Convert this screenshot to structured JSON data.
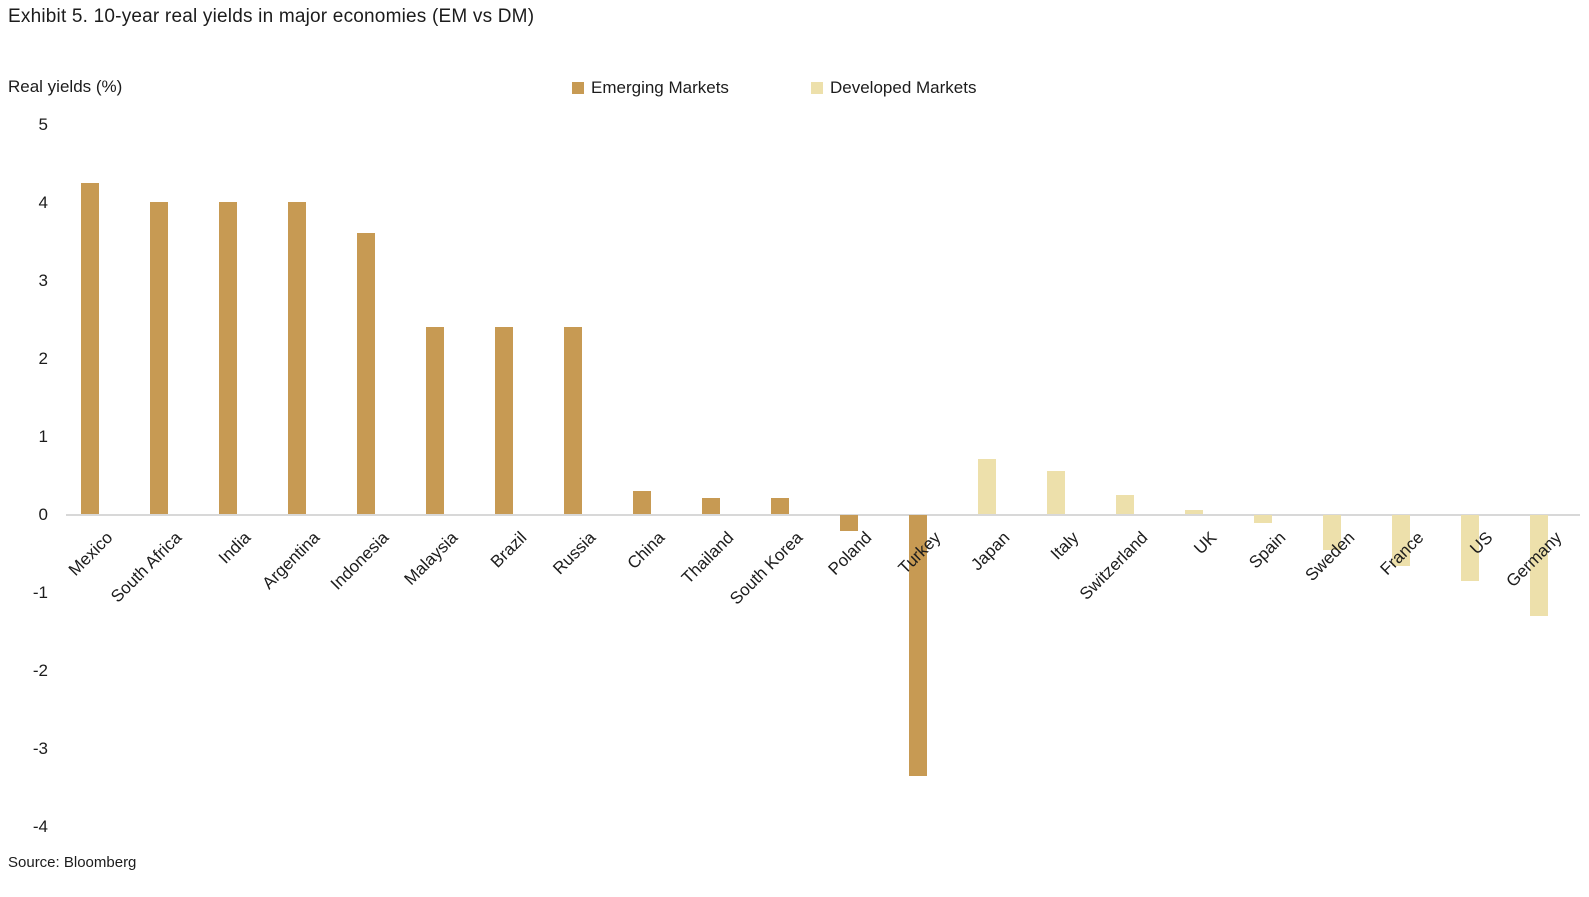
{
  "chart_data": {
    "type": "bar",
    "title": "Exhibit 5. 10-year real yields in major economies (EM vs DM)",
    "ylabel": "Real yields (%)",
    "source": "Source: Bloomberg",
    "ylim": [
      -4,
      5
    ],
    "yticks": [
      5,
      4,
      3,
      2,
      1,
      0,
      -1,
      -2,
      -3,
      -4
    ],
    "grid": false,
    "legend_position": "top-center",
    "categories": [
      "Mexico",
      "South Africa",
      "India",
      "Argentina",
      "Indonesia",
      "Malaysia",
      "Brazil",
      "Russia",
      "China",
      "Thailand",
      "South Korea",
      "Poland",
      "Turkey",
      "Japan",
      "Italy",
      "Switzerland",
      "UK",
      "Spain",
      "Sweden",
      "France",
      "US",
      "Germany"
    ],
    "series": [
      {
        "name": "Emerging Markets",
        "color": "#C79A53",
        "values": [
          4.25,
          4.0,
          4.0,
          4.0,
          3.6,
          2.4,
          2.4,
          2.4,
          0.3,
          0.2,
          0.2,
          -0.2,
          -3.35,
          null,
          null,
          null,
          null,
          null,
          null,
          null,
          null,
          null
        ]
      },
      {
        "name": "Developed Markets",
        "color": "#EDE0AB",
        "values": [
          null,
          null,
          null,
          null,
          null,
          null,
          null,
          null,
          null,
          null,
          null,
          null,
          null,
          0.7,
          0.55,
          0.25,
          0.05,
          -0.1,
          -0.45,
          -0.65,
          -0.85,
          -1.3
        ]
      }
    ]
  },
  "colors": {
    "axis_line": "#D8D8D8",
    "text": "#1C1C1C"
  }
}
